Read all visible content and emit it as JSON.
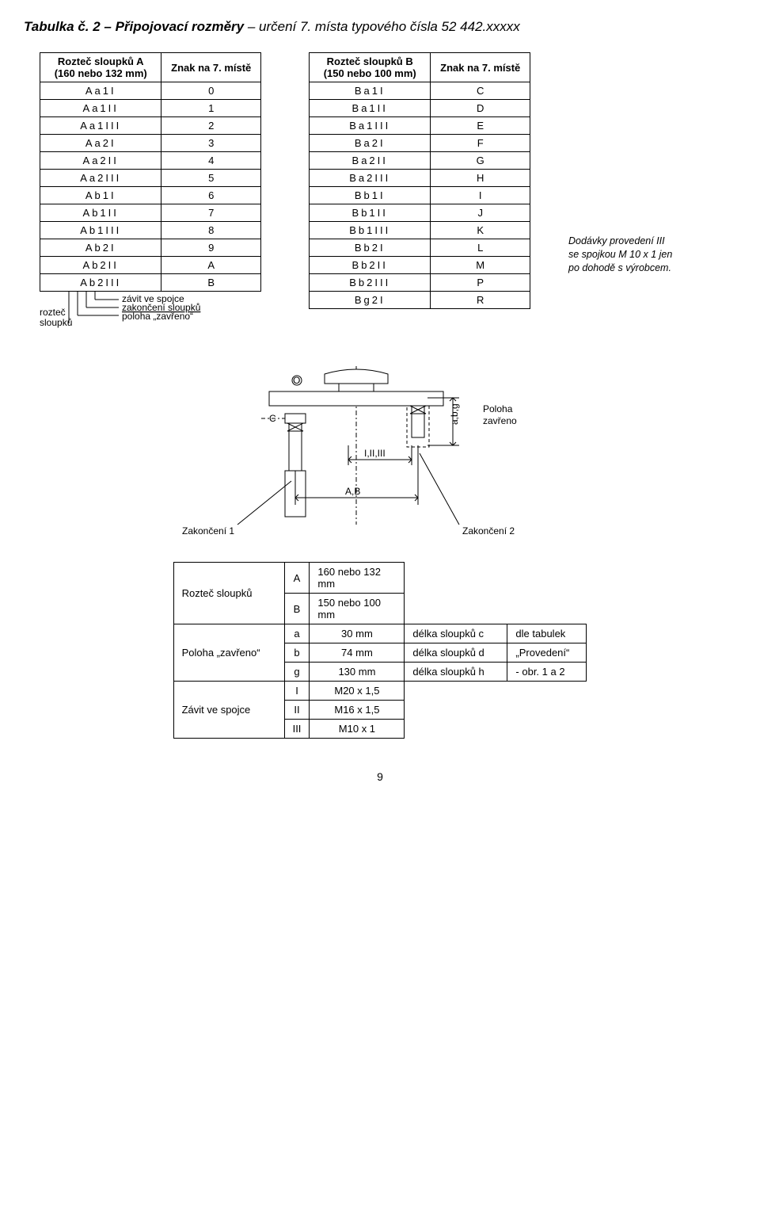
{
  "title": {
    "bold": "Tabulka č. 2 – Připojovací rozměry",
    "italic": " – určení 7. místa typového čísla 52 442.xxxxx"
  },
  "tableA": {
    "header1": "Rozteč sloupků A\n(160 nebo 132  mm)",
    "header2": "Znak na 7. místě",
    "rows": [
      {
        "c": "Aa1I",
        "v": "0"
      },
      {
        "c": "Aa1II",
        "v": "1"
      },
      {
        "c": "Aa1III",
        "v": "2"
      },
      {
        "c": "Aa2I",
        "v": "3"
      },
      {
        "c": "Aa2II",
        "v": "4"
      },
      {
        "c": "Aa2III",
        "v": "5"
      },
      {
        "c": "Ab1I",
        "v": "6"
      },
      {
        "c": "Ab1II",
        "v": "7"
      },
      {
        "c": "Ab1III",
        "v": "8"
      },
      {
        "c": "Ab2I",
        "v": "9"
      },
      {
        "c": "Ab2II",
        "v": "A"
      },
      {
        "c": "Ab2III",
        "v": "B"
      }
    ]
  },
  "tableB": {
    "header1": "Rozteč sloupků B\n(150 nebo 100  mm)",
    "header2": "Znak na 7. místě",
    "rows": [
      {
        "c": "Ba1I",
        "v": "C"
      },
      {
        "c": "Ba1II",
        "v": "D"
      },
      {
        "c": "Ba1III",
        "v": "E"
      },
      {
        "c": "Ba2I",
        "v": "F"
      },
      {
        "c": "Ba2II",
        "v": "G"
      },
      {
        "c": "Ba2III",
        "v": "H"
      },
      {
        "c": "Bb1I",
        "v": "I"
      },
      {
        "c": "Bb1II",
        "v": "J"
      },
      {
        "c": "Bb1III",
        "v": "K"
      },
      {
        "c": "Bb2I",
        "v": "L"
      },
      {
        "c": "Bb2II",
        "v": "M"
      },
      {
        "c": "Bb2III",
        "v": "P"
      },
      {
        "c": "Bg2I",
        "v": "R"
      }
    ]
  },
  "legend": {
    "l1": "rozteč",
    "l1b": "sloupků",
    "l2": "závit ve spojce",
    "l3": "zakončení sloupků",
    "l4": "poloha „zavřeno“"
  },
  "sideNote": "Dodávky provedení III\nse spojkou M 10 x 1 jen\npo dohodě s výrobcem.",
  "diagram": {
    "O": "O",
    "C": "C",
    "abg": "a,b,g",
    "poloha": "Poloha\nzavřeno",
    "iii": "I,II,III",
    "z1": "Zakončení 1",
    "AB": "A,B",
    "z2": "Zakončení 2"
  },
  "spec": {
    "r1lab": "Rozteč sloupků",
    "r1": [
      {
        "k": "A",
        "v": "160 nebo 132 mm"
      },
      {
        "k": "B",
        "v": "150 nebo 100 mm"
      }
    ],
    "r2lab": "Poloha „zavřeno“",
    "r2": [
      {
        "k": "a",
        "v": "30 mm",
        "d": "délka sloupků c",
        "e": "dle tabulek"
      },
      {
        "k": "b",
        "v": "74 mm",
        "d": "délka sloupků d",
        "e": "„Provedení“"
      },
      {
        "k": "g",
        "v": "130 mm",
        "d": "délka sloupků h",
        "e": "- obr. 1 a 2"
      }
    ],
    "r3lab": "Závit ve spojce",
    "r3": [
      {
        "k": "I",
        "v": "M20 x 1,5"
      },
      {
        "k": "II",
        "v": "M16 x 1,5"
      },
      {
        "k": "III",
        "v": "M10 x 1"
      }
    ]
  },
  "pageNumber": "9"
}
